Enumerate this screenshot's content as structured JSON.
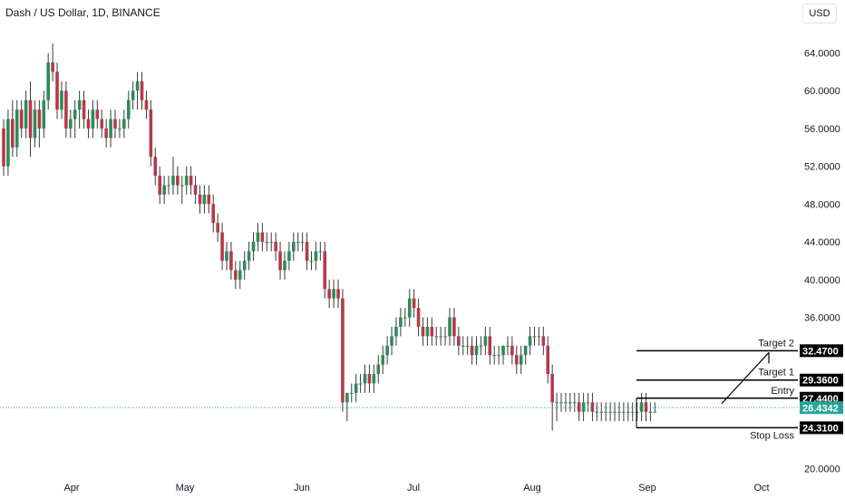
{
  "header": {
    "title": "Dash / US Dollar, 1D, BINANCE",
    "currency_button": "USD"
  },
  "colors": {
    "up": "#26a69a",
    "down": "#ef5350",
    "down_candle": "#b33a4a",
    "up_candle": "#2e8b57",
    "current_price_tag": "#26a69a",
    "level_tag": "#000000"
  },
  "chart_data": {
    "type": "candlestick",
    "symbol": "Dash / US Dollar",
    "interval": "1D",
    "exchange": "BINANCE",
    "ylim": [
      18.5,
      67.5
    ],
    "y_ticks": [
      "64.0000",
      "60.0000",
      "56.0000",
      "52.0000",
      "48.0000",
      "44.0000",
      "40.0000",
      "36.0000",
      "20.0000"
    ],
    "x_ticks": [
      "Apr",
      "May",
      "Jun",
      "Jul",
      "Aug",
      "Sep",
      "Oct"
    ],
    "grid": false,
    "current_price": "26.4342",
    "levels": [
      {
        "label": "Target 2",
        "value": "32.4700"
      },
      {
        "label": "Target 1",
        "value": "29.3600"
      },
      {
        "label": "Entry",
        "value": "27.4400"
      },
      {
        "label": "Stop Loss",
        "value": "24.3100"
      }
    ],
    "candles": [
      [
        56,
        57,
        51,
        52
      ],
      [
        52,
        58,
        51,
        57
      ],
      [
        57,
        59,
        53,
        54
      ],
      [
        54,
        59,
        53,
        58
      ],
      [
        58,
        59,
        55,
        56
      ],
      [
        56,
        60,
        55,
        59
      ],
      [
        59,
        61,
        53,
        55
      ],
      [
        55,
        59,
        54,
        58
      ],
      [
        58,
        59,
        54,
        56
      ],
      [
        56,
        60,
        55,
        59
      ],
      [
        59,
        64,
        58,
        63
      ],
      [
        63,
        65,
        61,
        62
      ],
      [
        62,
        63,
        57,
        58
      ],
      [
        58,
        61,
        57,
        60
      ],
      [
        60,
        61,
        55,
        56
      ],
      [
        56,
        58,
        55,
        57
      ],
      [
        57,
        59,
        55,
        58
      ],
      [
        58,
        60,
        56,
        59
      ],
      [
        59,
        60,
        56,
        57
      ],
      [
        57,
        58,
        55,
        56
      ],
      [
        56,
        59,
        55,
        58
      ],
      [
        58,
        59,
        56,
        57
      ],
      [
        57,
        58,
        55,
        56
      ],
      [
        56,
        57,
        54,
        55
      ],
      [
        55,
        58,
        54,
        57
      ],
      [
        57,
        58,
        55,
        56
      ],
      [
        56,
        57,
        55,
        56
      ],
      [
        56,
        58,
        55,
        57
      ],
      [
        57,
        60,
        56,
        59
      ],
      [
        59,
        61,
        58,
        60
      ],
      [
        60,
        62,
        58,
        61
      ],
      [
        61,
        62,
        58,
        59
      ],
      [
        59,
        60,
        57,
        58
      ],
      [
        58,
        59,
        52,
        53
      ],
      [
        53,
        54,
        50,
        51
      ],
      [
        51,
        52,
        48,
        49
      ],
      [
        49,
        51,
        48,
        50
      ],
      [
        50,
        51,
        49,
        50
      ],
      [
        50,
        53,
        49,
        51
      ],
      [
        51,
        52,
        49,
        50
      ],
      [
        50,
        51,
        48,
        50
      ],
      [
        50,
        52,
        49,
        51
      ],
      [
        51,
        52,
        49,
        50
      ],
      [
        50,
        51,
        48,
        49
      ],
      [
        49,
        50,
        47,
        48
      ],
      [
        48,
        50,
        47,
        49
      ],
      [
        49,
        50,
        47,
        48
      ],
      [
        48,
        49,
        45,
        46
      ],
      [
        46,
        47,
        44,
        45
      ],
      [
        45,
        46,
        41,
        42
      ],
      [
        42,
        44,
        41,
        43
      ],
      [
        43,
        44,
        40,
        41
      ],
      [
        41,
        42,
        39,
        40
      ],
      [
        40,
        42,
        39,
        41
      ],
      [
        41,
        43,
        40,
        42
      ],
      [
        42,
        44,
        41,
        43
      ],
      [
        43,
        45,
        42,
        44
      ],
      [
        44,
        46,
        43,
        45
      ],
      [
        45,
        46,
        43,
        44
      ],
      [
        44,
        45,
        43,
        44
      ],
      [
        44,
        45,
        43,
        44
      ],
      [
        44,
        45,
        42,
        43
      ],
      [
        43,
        44,
        40,
        41
      ],
      [
        41,
        43,
        40,
        42
      ],
      [
        42,
        44,
        41,
        43
      ],
      [
        43,
        45,
        42,
        44
      ],
      [
        44,
        45,
        43,
        44
      ],
      [
        44,
        45,
        43,
        44
      ],
      [
        44,
        45,
        41,
        42
      ],
      [
        42,
        43,
        41,
        42
      ],
      [
        42,
        44,
        41,
        43
      ],
      [
        43,
        44,
        42,
        43
      ],
      [
        43,
        44,
        38,
        39
      ],
      [
        39,
        40,
        37,
        38
      ],
      [
        38,
        40,
        37,
        39
      ],
      [
        39,
        40,
        37,
        38
      ],
      [
        38,
        39,
        26,
        27
      ],
      [
        27,
        28,
        25,
        28
      ],
      [
        28,
        29,
        27,
        28
      ],
      [
        28,
        30,
        27,
        29
      ],
      [
        29,
        30,
        28,
        29
      ],
      [
        29,
        31,
        28,
        30
      ],
      [
        30,
        31,
        28,
        29
      ],
      [
        29,
        31,
        28,
        30
      ],
      [
        30,
        32,
        29,
        31
      ],
      [
        31,
        33,
        30,
        32
      ],
      [
        32,
        34,
        31,
        33
      ],
      [
        33,
        35,
        32,
        34
      ],
      [
        34,
        36,
        33,
        35
      ],
      [
        35,
        37,
        34,
        36
      ],
      [
        36,
        37,
        35,
        36
      ],
      [
        36,
        39,
        35,
        38
      ],
      [
        38,
        39,
        36,
        37
      ],
      [
        37,
        38,
        34,
        35
      ],
      [
        35,
        36,
        33,
        34
      ],
      [
        34,
        36,
        33,
        35
      ],
      [
        35,
        36,
        33,
        34
      ],
      [
        34,
        35,
        33,
        34
      ],
      [
        34,
        35,
        33,
        34
      ],
      [
        34,
        35,
        33,
        34
      ],
      [
        34,
        37,
        33,
        36
      ],
      [
        36,
        37,
        33,
        34
      ],
      [
        34,
        35,
        32,
        33
      ],
      [
        33,
        34,
        32,
        33
      ],
      [
        33,
        34,
        32,
        33
      ],
      [
        33,
        34,
        31,
        32
      ],
      [
        32,
        34,
        31,
        33
      ],
      [
        33,
        34,
        32,
        33
      ],
      [
        33,
        35,
        32,
        34
      ],
      [
        34,
        35,
        31,
        32
      ],
      [
        32,
        33,
        31,
        32
      ],
      [
        32,
        33,
        31,
        32
      ],
      [
        32,
        33,
        31,
        33
      ],
      [
        33,
        34,
        32,
        33
      ],
      [
        33,
        34,
        31,
        32
      ],
      [
        32,
        33,
        30,
        31
      ],
      [
        31,
        33,
        30,
        32
      ],
      [
        32,
        33,
        31,
        33
      ],
      [
        33,
        35,
        32,
        34
      ],
      [
        34,
        35,
        33,
        34
      ],
      [
        34,
        35,
        33,
        34
      ],
      [
        34,
        35,
        32,
        33
      ],
      [
        33,
        34,
        29,
        30
      ],
      [
        30,
        31,
        24,
        27
      ],
      [
        27,
        28,
        25,
        27
      ],
      [
        27,
        28,
        26,
        27
      ],
      [
        27,
        28,
        26,
        27
      ],
      [
        27,
        28,
        26,
        27
      ],
      [
        27,
        28,
        26,
        27
      ],
      [
        27,
        28,
        25,
        26
      ],
      [
        26,
        28,
        25,
        27
      ],
      [
        27,
        28,
        26,
        27
      ],
      [
        27,
        28,
        25,
        26
      ],
      [
        26,
        27,
        25,
        26
      ],
      [
        26,
        27,
        25,
        26
      ],
      [
        26,
        27,
        25,
        26
      ],
      [
        26,
        27,
        25,
        26
      ],
      [
        26,
        27,
        25,
        26
      ],
      [
        26,
        27,
        25,
        26
      ],
      [
        26,
        27,
        25,
        26
      ],
      [
        26,
        27,
        25,
        26
      ],
      [
        26,
        27,
        25,
        26
      ],
      [
        26,
        27,
        25,
        26
      ],
      [
        26,
        28,
        25,
        27
      ],
      [
        27,
        28,
        25,
        26
      ],
      [
        26,
        27,
        25,
        26
      ],
      [
        26,
        27,
        26,
        26
      ]
    ]
  }
}
